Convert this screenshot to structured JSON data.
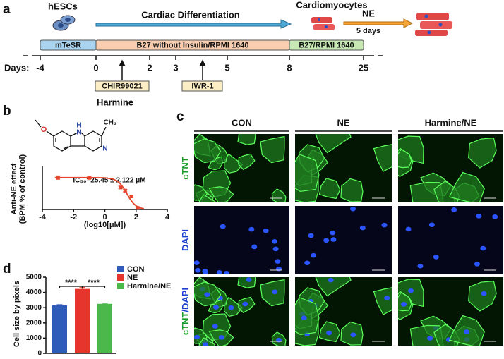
{
  "panel_a": {
    "label": "a",
    "hescs": "hESCs",
    "differentiation": "Cardiac Differentiation",
    "cardiomyocytes": "Cardiomyocytes",
    "ne": "NE",
    "ne_duration": "5 days",
    "media": [
      "mTeSR",
      "B27 without Insulin/RPMI 1640",
      "B27/RPMI 1640"
    ],
    "days_label": "Days:",
    "days": [
      "-4",
      "0",
      "2",
      "3",
      "5",
      "8",
      "25"
    ],
    "compounds": [
      "CHIR99021",
      "IWR-1"
    ]
  },
  "panel_b": {
    "label": "b",
    "compound": "Harmine",
    "atoms": [
      "O",
      "N",
      "H",
      "N",
      "CH₃"
    ]
  },
  "panel_c": {
    "label": "c",
    "columns": [
      "CON",
      "NE",
      "Harmine/NE"
    ],
    "rows": [
      [
        "cTNT"
      ],
      [
        "DAPI"
      ],
      [
        "cTNT",
        "/DAPI"
      ]
    ]
  },
  "panel_d": {
    "label": "d"
  },
  "chart_data": [
    {
      "type": "dose-response",
      "annotation": "IC₅₀=25.45 ± 2.122 μM",
      "y_label": [
        "Anti-NE effect",
        "(BPM % of control)"
      ],
      "x_label": "(log10[μM])",
      "xlim": [
        -4,
        4
      ],
      "xticks": [
        -4,
        -2,
        0,
        2,
        4
      ],
      "ylim": [
        0,
        135
      ],
      "color": "#e8452c",
      "points": {
        "x": [
          -3,
          -1,
          1.0,
          1.3,
          1.7,
          2.1
        ],
        "values": [
          100,
          99,
          69,
          59,
          41,
          5
        ],
        "errors": [
          5,
          3,
          4,
          4,
          4,
          3
        ]
      },
      "fit": {
        "x": [
          -3.2,
          -2,
          -1,
          0,
          0.5,
          0.8,
          1.0,
          1.2,
          1.4,
          1.6,
          1.8,
          2.0,
          2.2,
          2.5
        ],
        "values": [
          100,
          100,
          100,
          99.2,
          95.8,
          89.0,
          80.3,
          67.1,
          50.5,
          33.9,
          20.4,
          11.4,
          6.1,
          2.2
        ]
      }
    },
    {
      "type": "bar",
      "y_label": "Cell size by pixels",
      "ylim": [
        0,
        5000
      ],
      "yticks": [
        0,
        1000,
        2000,
        3000,
        4000,
        5000
      ],
      "series": [
        {
          "name": "CON",
          "color": "#2f5cb8",
          "values": [
            3150
          ],
          "errors": [
            40
          ]
        },
        {
          "name": "NE",
          "color": "#e6352c",
          "values": [
            4230
          ],
          "errors": [
            80
          ]
        },
        {
          "name": "Harmine/NE",
          "color": "#4cb84c",
          "values": [
            3250
          ],
          "errors": [
            40
          ]
        }
      ],
      "annotations": [
        "****",
        "****"
      ]
    }
  ]
}
